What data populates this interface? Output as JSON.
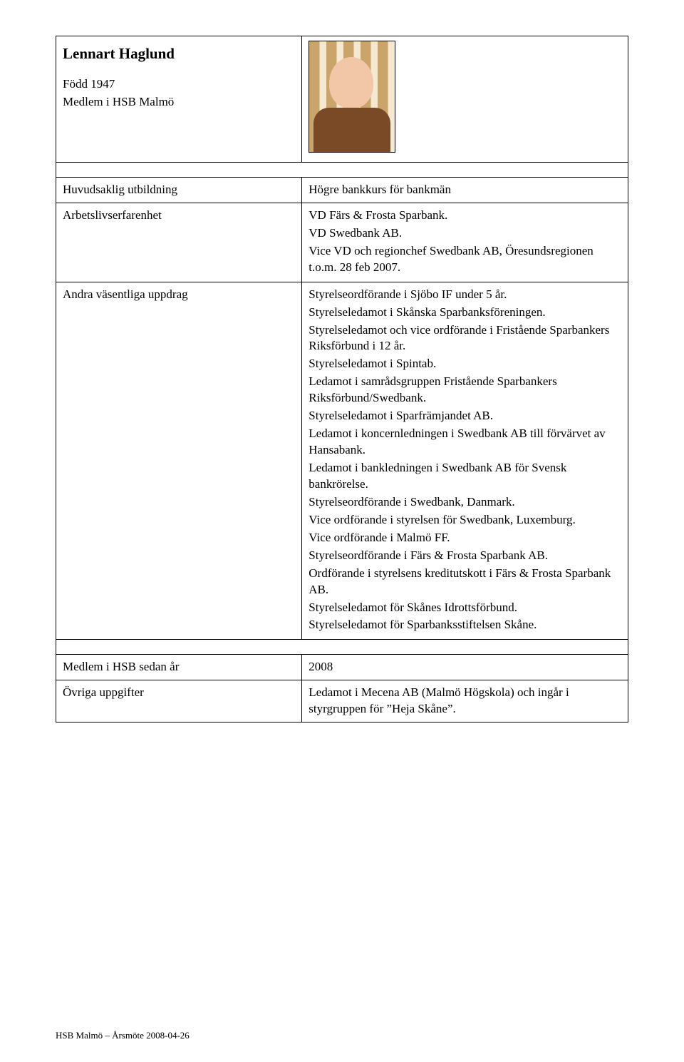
{
  "header": {
    "name": "Lennart Haglund",
    "born": "Född 1947",
    "member": "Medlem i HSB Malmö"
  },
  "rows": {
    "education": {
      "label": "Huvudsaklig utbildning",
      "value": "Högre bankkurs för bankmän"
    },
    "work": {
      "label": "Arbetslivserfarenhet",
      "lines": [
        "VD Färs & Frosta Sparbank.",
        "VD Swedbank AB.",
        "Vice VD och regionchef Swedbank AB, Öresundsregionen t.o.m. 28 feb 2007."
      ]
    },
    "other": {
      "label": "Andra väsentliga uppdrag",
      "lines": [
        "Styrelseordförande i Sjöbo IF under 5 år.",
        "Styrelseledamot i Skånska Sparbanksföreningen.",
        "Styrelseledamot och vice ordförande i Fristående Sparbankers Riksförbund i 12 år.",
        "Styrelseledamot i Spintab.",
        "Ledamot i samrådsgruppen Fristående Sparbankers Riksförbund/Swedbank.",
        "Styrelseledamot i Sparfrämjandet AB.",
        "Ledamot i koncernledningen i Swedbank AB till förvärvet av Hansabank.",
        "Ledamot i bankledningen i Swedbank AB för Svensk bankrörelse.",
        "Styrelseordförande i Swedbank, Danmark.",
        "Vice ordförande i styrelsen för Swedbank, Luxemburg.",
        "Vice ordförande i Malmö FF.",
        "Styrelseordförande i Färs & Frosta Sparbank AB.",
        "Ordförande i styrelsens kreditutskott i Färs & Frosta Sparbank AB.",
        "Styrelseledamot för Skånes Idrottsförbund.",
        "Styrelseledamot för Sparbanksstiftelsen Skåne."
      ]
    },
    "since": {
      "label": "Medlem i HSB sedan år",
      "value": "2008"
    },
    "extra": {
      "label": "Övriga uppgifter",
      "value": "Ledamot i Mecena AB (Malmö Högskola) och ingår i styrgruppen för ”Heja Skåne”."
    }
  },
  "footer": "HSB Malmö – Årsmöte 2008-04-26"
}
